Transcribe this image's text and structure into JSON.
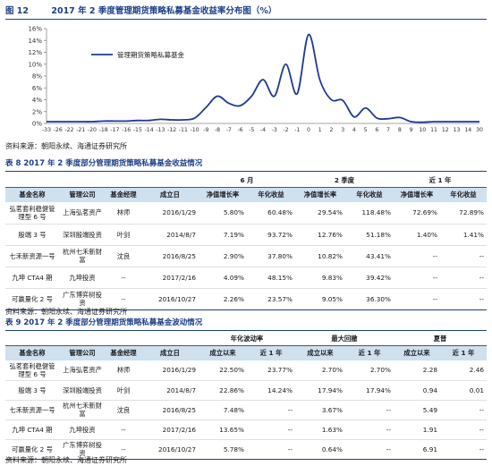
{
  "figure": {
    "number": "图 12",
    "title": "2017 年 2 季度管理期货策略私募基金收益率分布图（%）",
    "legend": "管理期货策略私募基金",
    "source": "资料来源：朝阳永续、海通证券研究所"
  },
  "chart_data": {
    "type": "line",
    "title": "2017 年 2 季度管理期货策略私募基金收益率分布图（%）",
    "x": [
      "-33",
      "-26",
      "-22",
      "-21",
      "-20",
      "-18",
      "-17",
      "-16",
      "-15",
      "-14",
      "-13",
      "-12",
      "-11",
      "-10",
      "-9",
      "-8",
      "-7",
      "-6",
      "-5",
      "-4",
      "-3",
      "-2",
      "-1",
      "0",
      "1",
      "2",
      "3",
      "4",
      "5",
      "6",
      "7",
      "8",
      "9",
      "10",
      "11",
      "12",
      "13",
      "14",
      "30"
    ],
    "ytick_labels": [
      "0%",
      "2%",
      "4%",
      "6%",
      "8%",
      "10%",
      "12%",
      "14%",
      "16%"
    ],
    "ylim": [
      0,
      16
    ],
    "grid": false,
    "legend_position": "top-left",
    "series": [
      {
        "name": "管理期货策略私募基金",
        "color": "#1f3a93",
        "values": [
          0.3,
          0.3,
          0.3,
          0.3,
          0.3,
          0.4,
          0.4,
          0.4,
          0.5,
          0.5,
          0.7,
          0.6,
          0.6,
          0.9,
          2.7,
          4.6,
          3.4,
          3.0,
          4.6,
          7.4,
          4.6,
          10.0,
          5.0,
          15.0,
          7.3,
          4.0,
          3.9,
          1.1,
          2.6,
          0.9,
          0.8,
          1.0,
          0.3,
          0.2,
          0.3,
          0.3,
          0.3,
          0.3,
          0.3
        ]
      }
    ]
  },
  "table8": {
    "title": "表 8 2017 年 2 季度部分管理期货策略私募基金收益情况",
    "groups": [
      "6 月",
      "2 季度",
      "近 1 年"
    ],
    "headers": [
      "基金名称",
      "管理公司",
      "基金经理",
      "成立日",
      "净值增长率",
      "年化收益",
      "净值增长率",
      "年化收益",
      "净值增长率",
      "年化收益"
    ],
    "rows": [
      [
        "弘茗套利稳健管理型 6 号",
        "上海弘茗资产",
        "林师",
        "2016/1/29",
        "5.80%",
        "60.48%",
        "29.54%",
        "118.48%",
        "72.69%",
        "72.89%"
      ],
      [
        "殷端 3 号",
        "深圳殷端投资",
        "叶剑",
        "2014/8/7",
        "7.19%",
        "93.72%",
        "12.76%",
        "51.18%",
        "1.40%",
        "1.41%"
      ],
      [
        "七禾新资源一号",
        "杭州七禾新财富",
        "沈良",
        "2016/8/25",
        "2.90%",
        "37.80%",
        "10.82%",
        "43.41%",
        "--",
        "--"
      ],
      [
        "九坤 CTA4 期",
        "九坤投资",
        "--",
        "2017/2/16",
        "4.09%",
        "48.15%",
        "9.83%",
        "39.42%",
        "--",
        "--"
      ],
      [
        "可赢量化 2 号",
        "广东博弈树投资",
        "--",
        "2016/10/27",
        "2.26%",
        "23.57%",
        "9.05%",
        "36.30%",
        "--",
        "--"
      ]
    ],
    "source": "资料来源：朝阳永续、海通证券研究所"
  },
  "table9": {
    "title": "表 9 2017 年 2 季度部分管理期货策略私募基金波动情况",
    "groups": [
      "年化波动率",
      "最大回撤",
      "夏普"
    ],
    "headers": [
      "基金名称",
      "管理公司",
      "基金经理",
      "成立日",
      "成立以来",
      "近 1 年",
      "成立以来",
      "近 1 年",
      "成立以来",
      "近 1 年"
    ],
    "rows": [
      [
        "弘茗套利稳健管理型 6 号",
        "上海弘茗资产",
        "林师",
        "2016/1/29",
        "22.50%",
        "23.77%",
        "2.70%",
        "2.70%",
        "2.28",
        "2.46"
      ],
      [
        "殷端 3 号",
        "深圳殷端投资",
        "叶剑",
        "2014/8/7",
        "22.86%",
        "14.24%",
        "17.94%",
        "17.94%",
        "0.94",
        "0.01"
      ],
      [
        "七禾新资源一号",
        "杭州七禾新财富",
        "沈良",
        "2016/8/25",
        "7.48%",
        "--",
        "3.67%",
        "--",
        "5.49",
        "--"
      ],
      [
        "九坤 CTA4 期",
        "九坤投资",
        "--",
        "2017/2/16",
        "13.65%",
        "--",
        "1.63%",
        "--",
        "1.91",
        "--"
      ],
      [
        "可赢量化 2 号",
        "广东博弈树投资",
        "--",
        "2016/10/27",
        "5.78%",
        "--",
        "0.64%",
        "--",
        "6.91",
        "--"
      ]
    ],
    "source": "资料来源：朝阳永续、海通证券研究所"
  }
}
